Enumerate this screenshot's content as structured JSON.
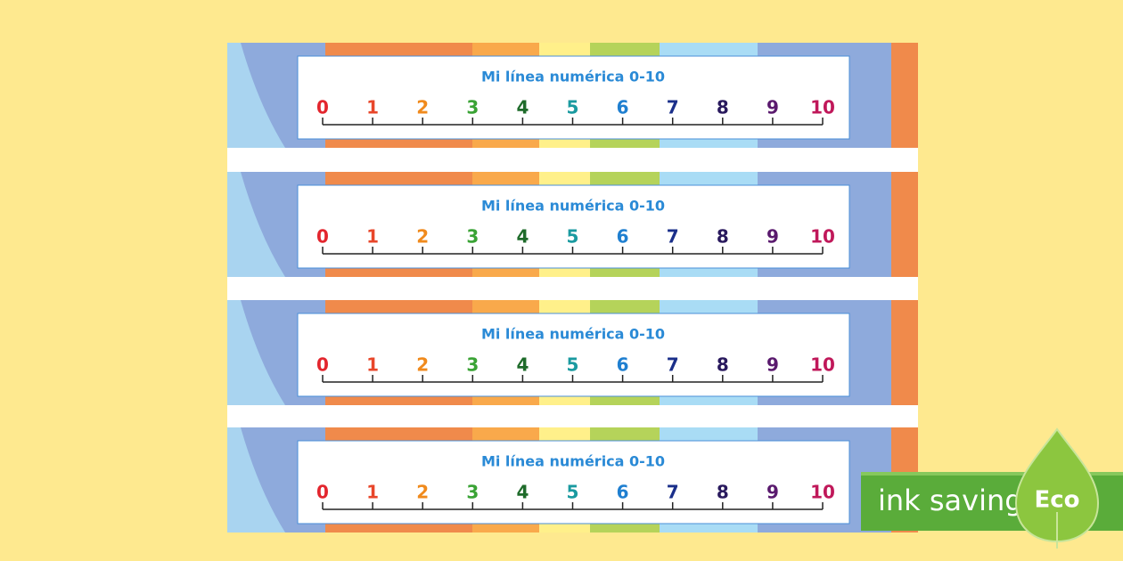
{
  "strips": [
    {
      "title": "Mi línea numérica 0-10",
      "numbers": [
        0,
        1,
        2,
        3,
        4,
        5,
        6,
        7,
        8,
        9,
        10
      ]
    },
    {
      "title": "Mi línea numérica 0-10",
      "numbers": [
        0,
        1,
        2,
        3,
        4,
        5,
        6,
        7,
        8,
        9,
        10
      ]
    },
    {
      "title": "Mi línea numérica 0-10",
      "numbers": [
        0,
        1,
        2,
        3,
        4,
        5,
        6,
        7,
        8,
        9,
        10
      ]
    },
    {
      "title": "Mi línea numérica 0-10",
      "numbers": [
        0,
        1,
        2,
        3,
        4,
        5,
        6,
        7,
        8,
        9,
        10
      ]
    }
  ],
  "badge": {
    "label": "ink saving",
    "tag": "Eco"
  }
}
